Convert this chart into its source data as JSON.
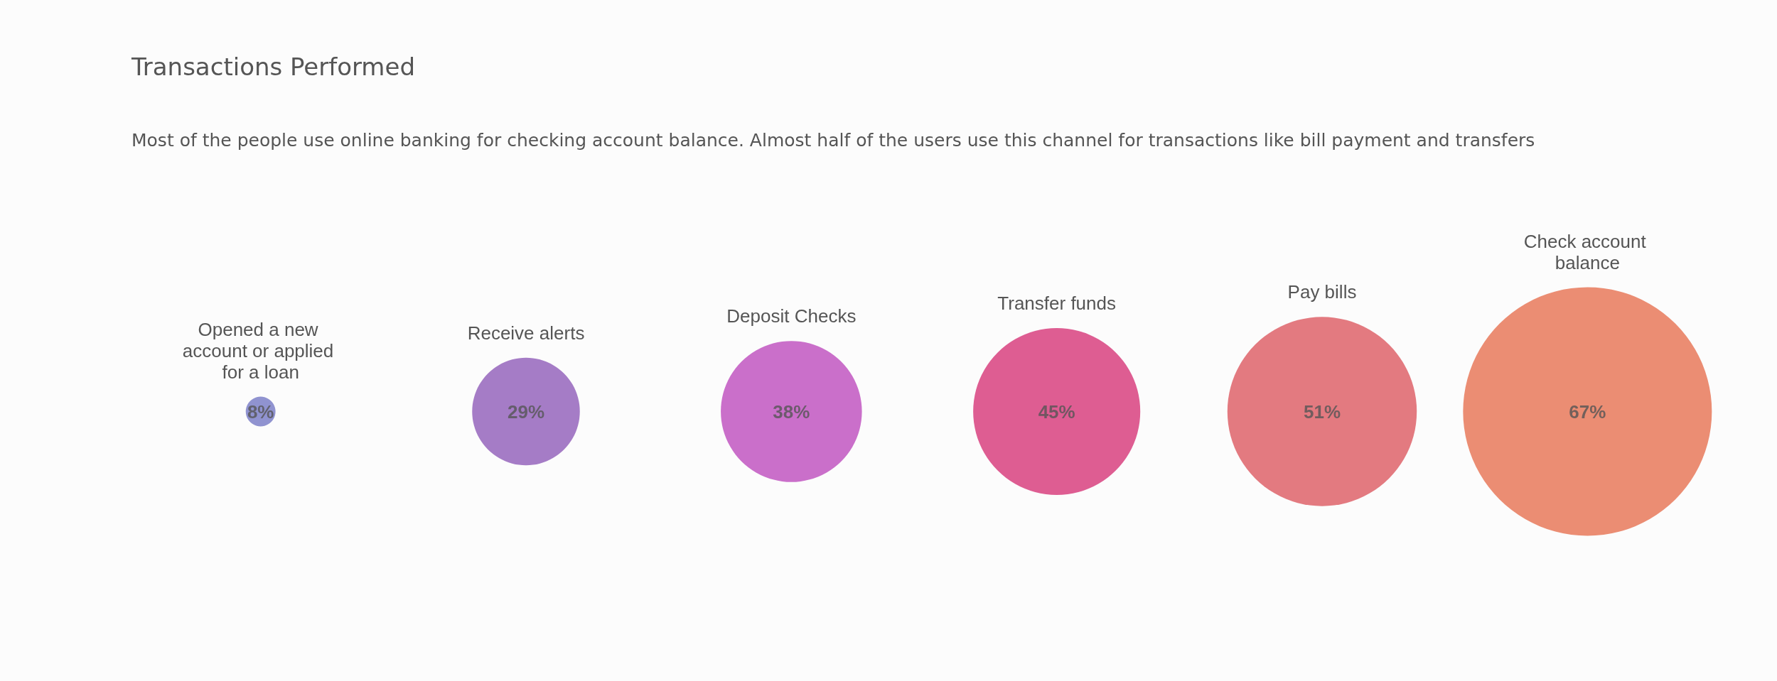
{
  "chart_data": {
    "type": "other",
    "title": "Transactions Performed",
    "subtitle": "Most of the people use online banking for checking account balance. Almost half of the users use this channel for transactions like bill payment and transfers",
    "categories": [
      "Opened a new account or applied for a loan",
      "Receive alerts",
      "Deposit Checks",
      "Transfer funds",
      "Pay bills",
      "Check account balance"
    ],
    "values": [
      8,
      29,
      38,
      45,
      51,
      67
    ],
    "value_labels": [
      "8%",
      "29%",
      "38%",
      "45%",
      "51%",
      "67%"
    ],
    "colors": [
      "#7478c4",
      "#8f5bb8",
      "#bd4bbd",
      "#d63477",
      "#dc5960",
      "#e67050"
    ]
  }
}
